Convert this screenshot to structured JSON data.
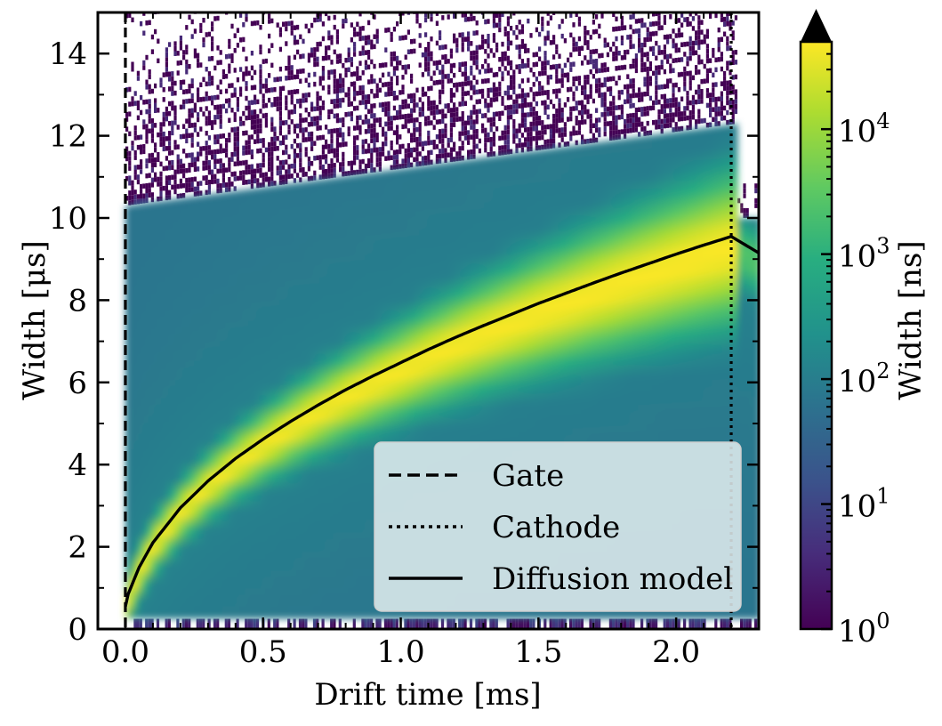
{
  "chart_data": {
    "type": "heatmap",
    "xlabel": "Drift time [ms]",
    "ylabel": "Width [μs]",
    "xlim": [
      -0.1,
      2.3
    ],
    "ylim": [
      0,
      15
    ],
    "x_ticks": [
      {
        "value": 0.0,
        "label": "0.0"
      },
      {
        "value": 0.5,
        "label": "0.5"
      },
      {
        "value": 1.0,
        "label": "1.0"
      },
      {
        "value": 1.5,
        "label": "1.5"
      },
      {
        "value": 2.0,
        "label": "2.0"
      }
    ],
    "y_ticks": [
      {
        "value": 0,
        "label": "0"
      },
      {
        "value": 2,
        "label": "2"
      },
      {
        "value": 4,
        "label": "4"
      },
      {
        "value": 6,
        "label": "6"
      },
      {
        "value": 8,
        "label": "8"
      },
      {
        "value": 10,
        "label": "10"
      },
      {
        "value": 12,
        "label": "12"
      },
      {
        "value": 14,
        "label": "14"
      }
    ],
    "colorbar": {
      "label": "Width [ns]",
      "scale": "log",
      "range": [
        1,
        50000
      ],
      "extend": "max",
      "colormap": "viridis",
      "ticks": [
        {
          "value": 1,
          "base": "10",
          "exp": "0"
        },
        {
          "value": 10,
          "base": "10",
          "exp": "1"
        },
        {
          "value": 100,
          "base": "10",
          "exp": "2"
        },
        {
          "value": 1000,
          "base": "10",
          "exp": "3"
        },
        {
          "value": 10000,
          "base": "10",
          "exp": "4"
        }
      ]
    },
    "lines": [
      {
        "name": "Gate",
        "style": "dashed",
        "orientation": "vertical",
        "x": 0.0,
        "color": "#000000"
      },
      {
        "name": "Cathode",
        "style": "dotted",
        "orientation": "vertical",
        "x": 2.2,
        "color": "#000000"
      },
      {
        "name": "Diffusion model",
        "style": "solid",
        "color": "#000000",
        "x": [
          0.0,
          0.01,
          0.05,
          0.1,
          0.2,
          0.3,
          0.4,
          0.5,
          0.6,
          0.7,
          0.8,
          0.9,
          1.0,
          1.1,
          1.2,
          1.3,
          1.4,
          1.5,
          1.6,
          1.7,
          1.8,
          1.9,
          2.0,
          2.1,
          2.2,
          2.3
        ],
        "y": [
          0.55,
          0.85,
          1.5,
          2.1,
          2.95,
          3.6,
          4.15,
          4.62,
          5.05,
          5.45,
          5.82,
          6.16,
          6.48,
          6.8,
          7.1,
          7.38,
          7.65,
          7.92,
          8.17,
          8.42,
          8.66,
          8.89,
          9.12,
          9.34,
          9.55,
          9.15
        ]
      }
    ],
    "legend": {
      "position": "lower-right",
      "entries": [
        "Gate",
        "Cathode",
        "Diffusion model"
      ]
    }
  }
}
